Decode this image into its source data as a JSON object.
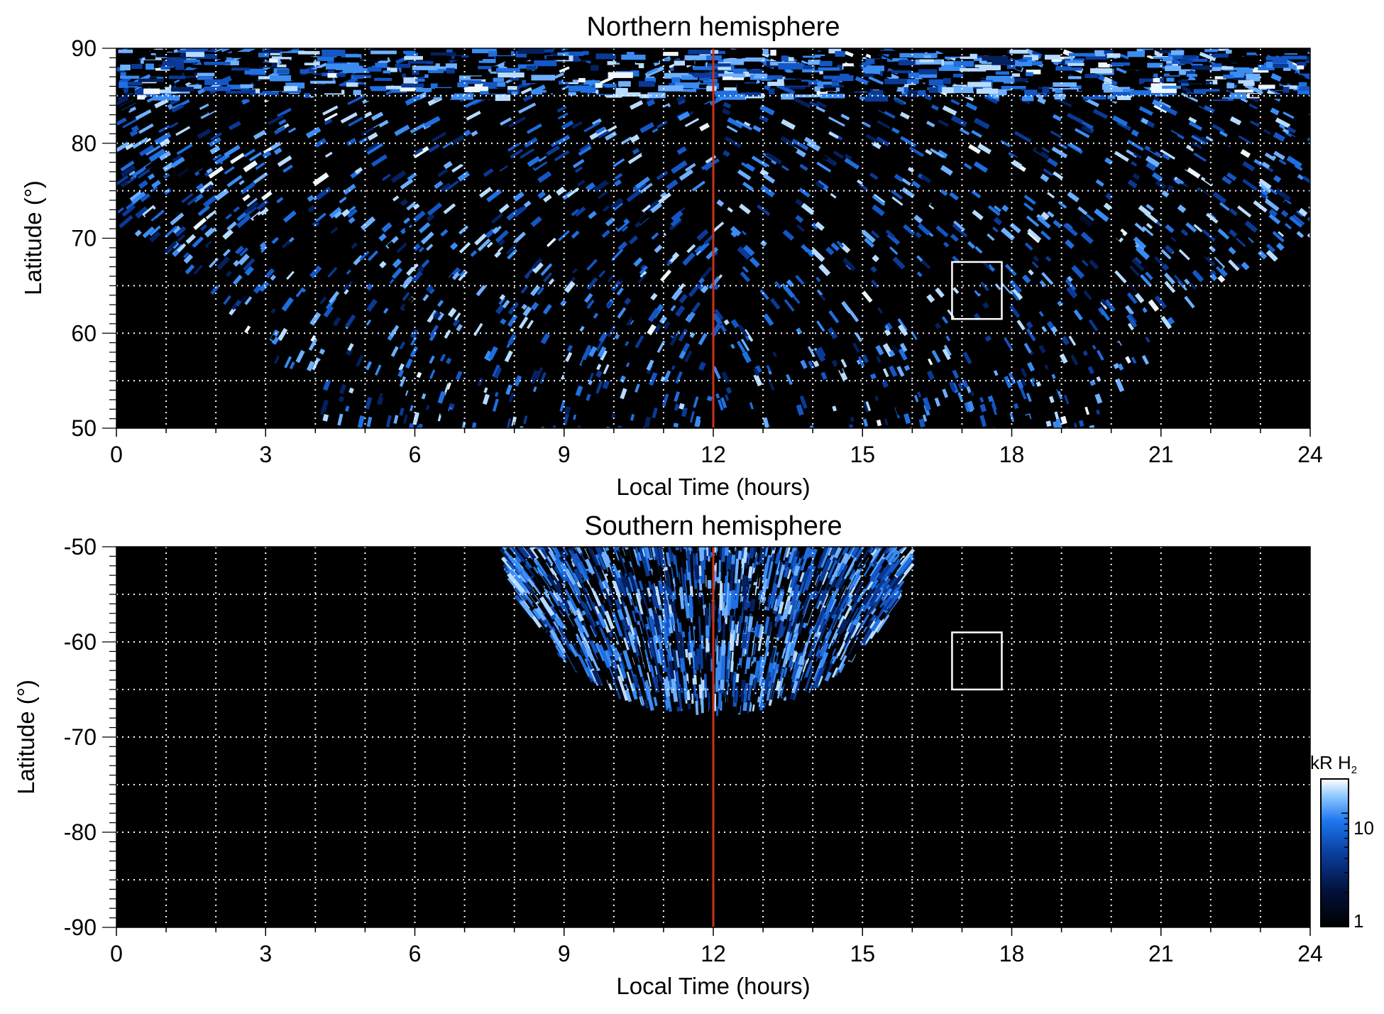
{
  "colors": {
    "background": "#000000",
    "red_line": "#c8321e",
    "grid": "#ffffff",
    "emission_low": "#000410",
    "emission_mid": "#1e6fe0",
    "emission_high": "#eaf4ff"
  },
  "chart_data": [
    {
      "type": "heatmap",
      "title": "Northern hemisphere",
      "xlabel": "Local Time (hours)",
      "ylabel": "Latitude (°)",
      "xlim": [
        0,
        24
      ],
      "ylim": [
        50,
        90
      ],
      "x_ticks": [
        0,
        3,
        6,
        9,
        12,
        15,
        18,
        21,
        24
      ],
      "x_tick_labels": [
        "0",
        "3",
        "6",
        "9",
        "12",
        "15",
        "18",
        "21",
        "24"
      ],
      "y_ticks": [
        50,
        60,
        70,
        80,
        90
      ],
      "y_tick_labels": [
        "50",
        "60",
        "70",
        "80",
        "90"
      ],
      "x_grid": [
        1,
        2,
        3,
        4,
        5,
        6,
        7,
        8,
        9,
        10,
        11,
        12,
        13,
        14,
        15,
        16,
        17,
        18,
        19,
        20,
        21,
        22,
        23
      ],
      "y_grid": [
        55,
        60,
        65,
        75,
        80,
        85
      ],
      "grid": true,
      "reference_line_lt": 12,
      "box": {
        "lt": [
          16.8,
          17.8
        ],
        "lat": [
          61.5,
          67.5
        ]
      },
      "coverage": "bright at 90° across all LT; equatorward boundary ~70° at 0 and 24 LT reaching 50° between ~4 and ~19.5 LT"
    },
    {
      "type": "heatmap",
      "title": "Southern hemisphere",
      "xlabel": "Local Time (hours)",
      "ylabel": "Latitude (°)",
      "xlim": [
        0,
        24
      ],
      "ylim": [
        -90,
        -50
      ],
      "x_ticks": [
        0,
        3,
        6,
        9,
        12,
        15,
        18,
        21,
        24
      ],
      "x_tick_labels": [
        "0",
        "3",
        "6",
        "9",
        "12",
        "15",
        "18",
        "21",
        "24"
      ],
      "y_ticks": [
        -90,
        -80,
        -70,
        -60,
        -50
      ],
      "y_tick_labels": [
        "-90",
        "-80",
        "-70",
        "-60",
        "-50"
      ],
      "x_grid": [
        1,
        2,
        3,
        4,
        5,
        6,
        7,
        8,
        9,
        10,
        11,
        12,
        13,
        14,
        15,
        16,
        17,
        18,
        19,
        20,
        21,
        22,
        23
      ],
      "y_grid": [
        -85,
        -80,
        -75,
        -70,
        -65,
        -60,
        -55
      ],
      "grid": true,
      "reference_line_lt": 12,
      "box": {
        "lt": [
          16.8,
          17.8
        ],
        "lat": [
          -65,
          -59
        ]
      },
      "coverage": "emission only between ~8 and ~15.8 LT, from -50° down to ~-68° near 12 LT"
    }
  ],
  "colorbar": {
    "label_unit": "kR H",
    "label_subscript": "2",
    "tick_labels": [
      "1",
      "10"
    ],
    "scale": "log",
    "range": [
      1,
      20
    ]
  }
}
